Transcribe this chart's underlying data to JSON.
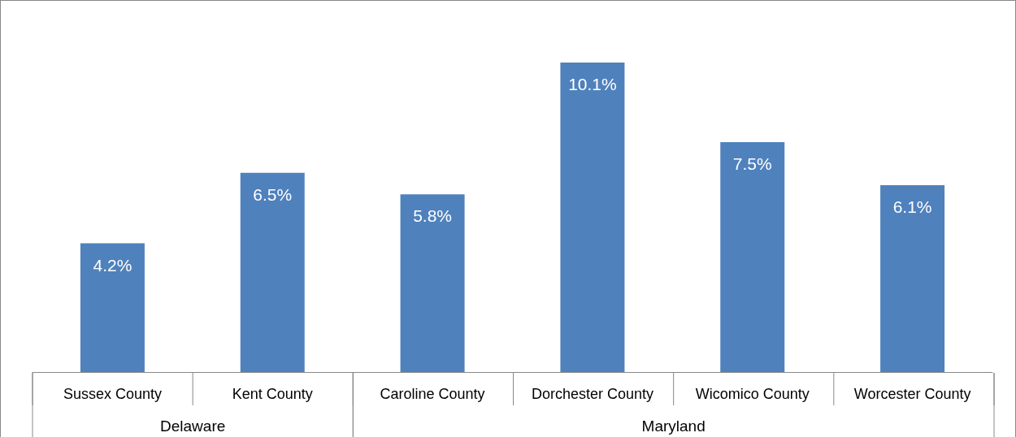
{
  "chart_data": {
    "type": "bar",
    "categories": [
      "Sussex County",
      "Kent County",
      "Caroline County",
      "Dorchester County",
      "Wicomico County",
      "Worcester County"
    ],
    "values": [
      4.2,
      6.5,
      5.8,
      10.1,
      7.5,
      6.1
    ],
    "value_labels": [
      "4.2%",
      "6.5%",
      "5.8%",
      "10.1%",
      "7.5%",
      "6.1%"
    ],
    "color": "#4f81bd",
    "annotations": [
      "Delaware",
      "Maryland"
    ]
  }
}
